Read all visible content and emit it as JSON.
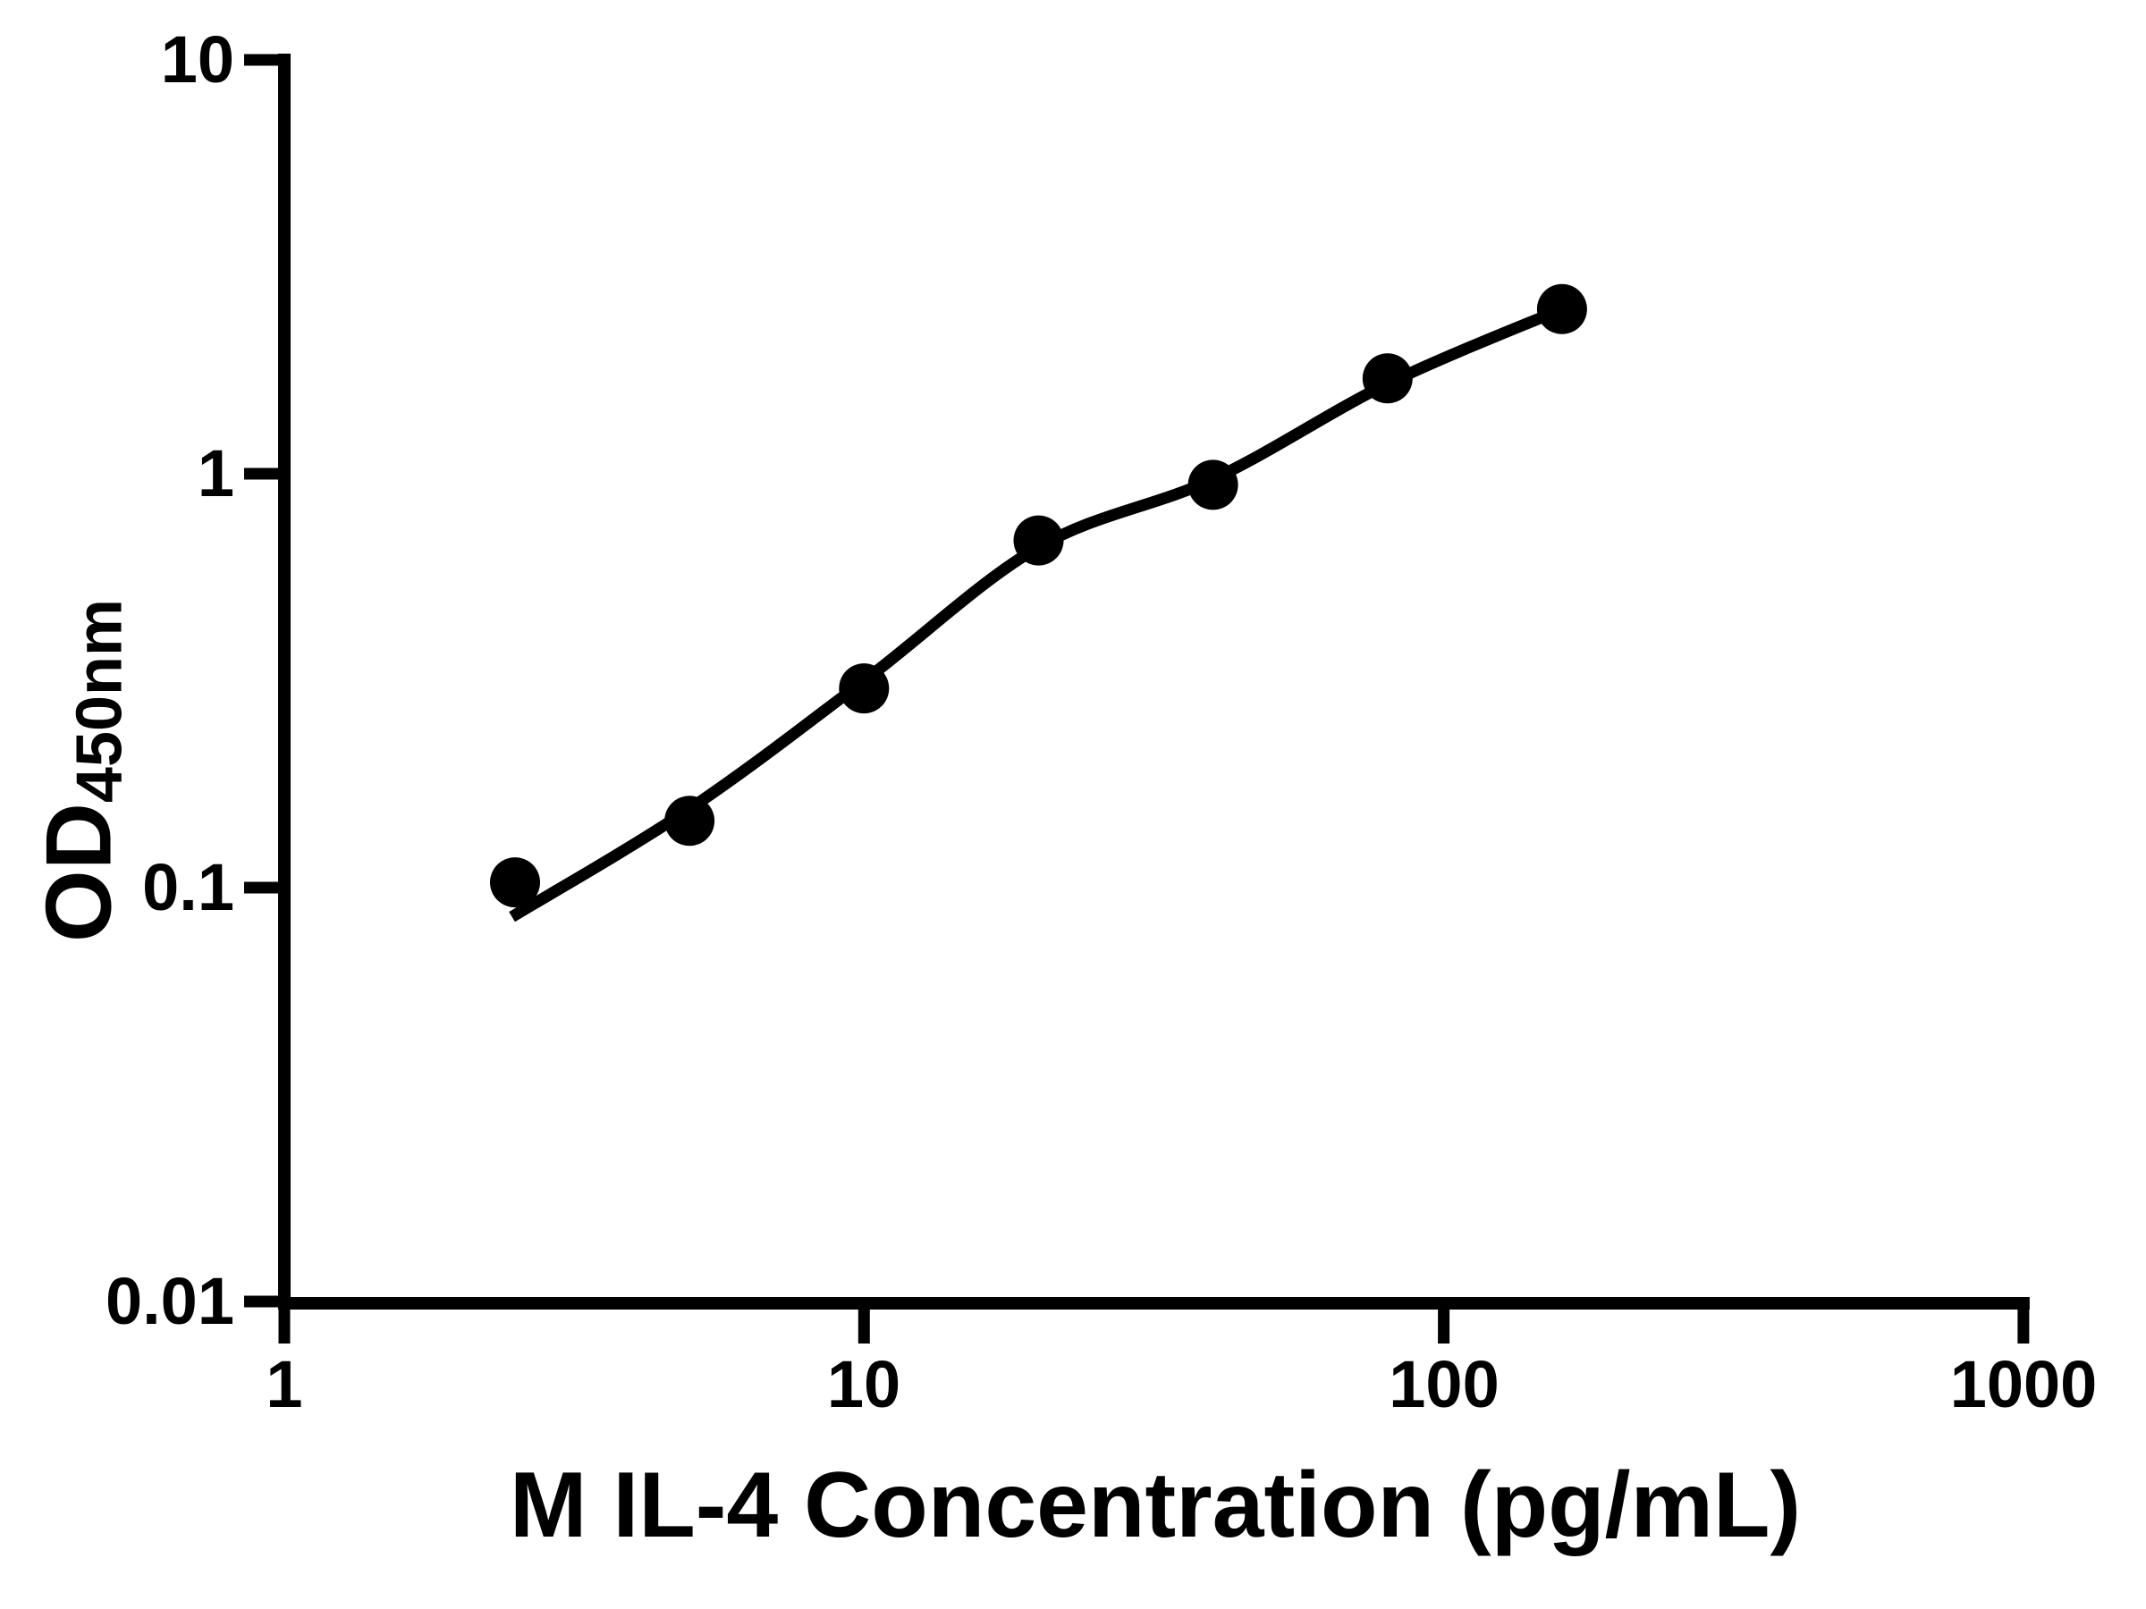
{
  "chart_data": {
    "type": "scatter",
    "title": "",
    "xlabel": "M IL-4 Concentration (pg/mL)",
    "ylabel": "OD450nm",
    "ylabel_base": "OD",
    "ylabel_subscript": "450nm",
    "x_scale": "log",
    "y_scale": "log",
    "xlim": [
      1,
      1000
    ],
    "ylim": [
      0.01,
      10
    ],
    "grid": false,
    "legend": null,
    "foreground_color": "#000000",
    "background_color": "#ffffff",
    "x_tick_values": [
      1,
      10,
      100,
      1000
    ],
    "x_tick_labels": [
      "1",
      "10",
      "100",
      "1000"
    ],
    "y_tick_values": [
      10,
      1,
      0.1,
      0.01
    ],
    "y_tick_labels": [
      "10",
      "1",
      "0.1",
      "0.01"
    ],
    "series": [
      {
        "name": "standard-points",
        "marker": "filled-circle",
        "color": "#000000",
        "points": [
          {
            "x": 2.5,
            "y": 0.103
          },
          {
            "x": 5,
            "y": 0.145
          },
          {
            "x": 10,
            "y": 0.303
          },
          {
            "x": 20,
            "y": 0.69
          },
          {
            "x": 40,
            "y": 0.94
          },
          {
            "x": 80,
            "y": 1.7
          },
          {
            "x": 160,
            "y": 2.5
          }
        ]
      }
    ],
    "fit_curve": {
      "name": "four-parameter-logistic-fit",
      "color": "#000000",
      "points": [
        {
          "x": 2.47,
          "y": 0.085
        },
        {
          "x": 5,
          "y": 0.155
        },
        {
          "x": 10,
          "y": 0.316
        },
        {
          "x": 20,
          "y": 0.665
        },
        {
          "x": 40,
          "y": 0.97
        },
        {
          "x": 80,
          "y": 1.65
        },
        {
          "x": 160,
          "y": 2.5
        }
      ]
    }
  }
}
